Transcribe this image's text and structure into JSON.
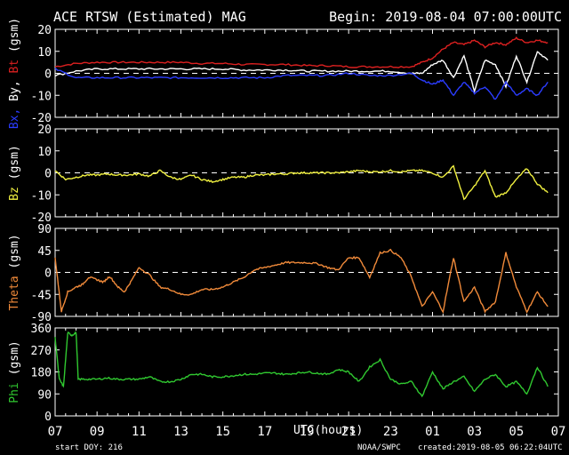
{
  "header": {
    "title": "ACE RTSW (Estimated) MAG",
    "begin": "Begin: 2019-08-04 07:00:00UTC"
  },
  "footer": {
    "start_doy": "start DOY:  216",
    "xlabel": "UTC(hours)",
    "source": "NOAA/SWPC",
    "created": "created:2019-08-05 06:22:04UTC"
  },
  "colors": {
    "bx": "#2b3cff",
    "by": "#ffffff",
    "bt": "#dd2020",
    "bz": "#f0f040",
    "theta": "#f08a3a",
    "phi": "#30c830",
    "grid": "#ffffff"
  },
  "chart_data": [
    {
      "type": "line",
      "ylabel_parts": [
        {
          "text": "Bx,",
          "color": "#2b3cff"
        },
        {
          "text": " By,",
          "color": "#ffffff"
        },
        {
          "text": " Bt",
          "color": "#dd2020"
        },
        {
          "text": " (gsm)",
          "color": "#ffffff"
        }
      ],
      "ylim": [
        -20,
        20
      ],
      "yticks": [
        "20",
        "10",
        "0",
        "-10",
        "-20"
      ],
      "ytick_values": [
        20,
        10,
        0,
        -10,
        -20
      ],
      "zero_line": 0,
      "x": [
        0,
        1,
        2,
        3,
        4,
        5,
        6,
        7,
        8,
        9,
        10,
        11,
        12,
        13,
        14,
        15,
        16,
        17,
        17.5,
        18,
        18.5,
        19,
        19.5,
        20,
        20.5,
        21,
        21.5,
        22,
        22.5,
        23,
        23.5
      ],
      "series": [
        {
          "name": "Bt",
          "color": "#dd2020",
          "values": [
            3,
            4.5,
            5,
            5,
            5,
            5,
            5,
            4.5,
            4.5,
            4,
            4,
            4,
            3.5,
            3.5,
            3,
            3,
            3,
            3,
            5,
            7,
            11,
            14,
            13,
            15,
            12,
            14,
            13,
            16,
            14,
            15,
            14
          ]
        },
        {
          "name": "By",
          "color": "#ffffff",
          "values": [
            -1,
            1,
            2,
            2,
            2,
            2,
            2,
            2,
            2,
            1.5,
            1.5,
            1.5,
            1,
            1,
            1,
            1,
            1,
            0,
            0,
            4,
            6,
            -2,
            8,
            -8,
            6,
            4,
            -6,
            8,
            -4,
            10,
            6
          ]
        },
        {
          "name": "Bx",
          "color": "#2b3cff",
          "values": [
            2,
            -2,
            -2,
            -2,
            -2,
            -2,
            -2,
            -2,
            -2,
            -2,
            -2,
            -1,
            -1,
            -1,
            0,
            -1,
            -1,
            0,
            -3,
            -5,
            -3,
            -10,
            -4,
            -9,
            -6,
            -12,
            -4,
            -10,
            -7,
            -10,
            -4
          ]
        }
      ]
    },
    {
      "type": "line",
      "ylabel_parts": [
        {
          "text": "Bz",
          "color": "#f0f040"
        },
        {
          "text": " (gsm)",
          "color": "#ffffff"
        }
      ],
      "ylim": [
        -20,
        20
      ],
      "yticks": [
        "20",
        "10",
        "0",
        "-10",
        "-20"
      ],
      "ytick_values": [
        20,
        10,
        0,
        -10,
        -20
      ],
      "zero_line": 0,
      "x": [
        0,
        0.5,
        1,
        1.5,
        2,
        2.5,
        3,
        3.5,
        4,
        4.5,
        5,
        5.5,
        6,
        6.5,
        7,
        7.5,
        8,
        8.5,
        9,
        9.5,
        10,
        10.5,
        11,
        11.5,
        12,
        12.5,
        13,
        13.5,
        14,
        14.5,
        15,
        15.5,
        16,
        16.5,
        17,
        17.5,
        18,
        18.5,
        19,
        19.5,
        20,
        20.5,
        21,
        21.5,
        22,
        22.5,
        23,
        23.5
      ],
      "series": [
        {
          "name": "Bz",
          "color": "#f0f040",
          "values": [
            1,
            -3,
            -2,
            -1,
            -1,
            -0.5,
            -1,
            -1,
            -0.5,
            -1.5,
            1,
            -2,
            -3,
            -1,
            -3,
            -4,
            -3,
            -2,
            -2,
            -1,
            -1,
            -0.5,
            -0.5,
            0,
            0,
            0,
            0,
            0,
            0.5,
            1,
            0.5,
            0.5,
            1,
            0.5,
            1,
            1,
            0,
            -2,
            3,
            -12,
            -6,
            1,
            -11,
            -9,
            -3,
            2,
            -5,
            -9
          ]
        }
      ]
    },
    {
      "type": "line",
      "ylabel_parts": [
        {
          "text": "Theta",
          "color": "#f08a3a"
        },
        {
          "text": " (gsm)",
          "color": "#ffffff"
        }
      ],
      "ylim": [
        -90,
        90
      ],
      "yticks": [
        "90",
        "45",
        "0",
        "-45",
        "-90"
      ],
      "ytick_values": [
        90,
        45,
        0,
        -45,
        -90
      ],
      "zero_line": 0,
      "x": [
        0,
        0.3,
        0.6,
        1,
        1.3,
        1.6,
        2,
        2.3,
        2.6,
        3,
        3.3,
        3.6,
        4,
        4.5,
        5,
        5.5,
        6,
        6.5,
        7,
        7.5,
        8,
        8.5,
        9,
        9.5,
        10,
        10.5,
        11,
        11.5,
        12,
        12.5,
        13,
        13.5,
        14,
        14.5,
        15,
        15.5,
        16,
        16.5,
        17,
        17.5,
        18,
        18.5,
        19,
        19.5,
        20,
        20.5,
        21,
        21.5,
        22,
        22.5,
        23,
        23.5
      ],
      "series": [
        {
          "name": "Theta",
          "color": "#f08a3a",
          "values": [
            30,
            -80,
            -40,
            -30,
            -25,
            -10,
            -15,
            -20,
            -8,
            -30,
            -40,
            -20,
            10,
            -5,
            -30,
            -35,
            -45,
            -45,
            -35,
            -35,
            -30,
            -20,
            -10,
            5,
            10,
            15,
            20,
            20,
            20,
            18,
            10,
            5,
            30,
            30,
            -10,
            40,
            45,
            30,
            -10,
            -70,
            -40,
            -80,
            30,
            -60,
            -30,
            -80,
            -60,
            40,
            -30,
            -80,
            -40,
            -70
          ]
        }
      ]
    },
    {
      "type": "line",
      "ylabel_parts": [
        {
          "text": "Phi",
          "color": "#30c830"
        },
        {
          "text": " (gsm)",
          "color": "#ffffff"
        }
      ],
      "ylim": [
        0,
        360
      ],
      "yticks": [
        "360",
        "270",
        "180",
        "90",
        "0"
      ],
      "ytick_values": [
        360,
        270,
        180,
        90,
        0
      ],
      "zero_line": null,
      "x": [
        0,
        0.2,
        0.4,
        0.6,
        0.8,
        1,
        1.1,
        1.5,
        2,
        2.5,
        3,
        3.5,
        4,
        4.5,
        5,
        5.5,
        6,
        6.5,
        7,
        7.5,
        8,
        8.5,
        9,
        9.5,
        10,
        10.5,
        11,
        11.5,
        12,
        12.5,
        13,
        13.5,
        14,
        14.5,
        15,
        15.5,
        16,
        16.5,
        17,
        17.5,
        18,
        18.5,
        19,
        19.5,
        20,
        20.5,
        21,
        21.5,
        22,
        22.5,
        23,
        23.5
      ],
      "series": [
        {
          "name": "Phi",
          "color": "#30c830",
          "values": [
            320,
            150,
            120,
            340,
            330,
            340,
            150,
            150,
            150,
            155,
            150,
            150,
            150,
            160,
            140,
            140,
            150,
            170,
            170,
            160,
            160,
            165,
            170,
            170,
            175,
            175,
            170,
            175,
            180,
            175,
            170,
            190,
            180,
            140,
            200,
            230,
            150,
            130,
            140,
            80,
            180,
            110,
            140,
            160,
            100,
            150,
            170,
            120,
            140,
            90,
            200,
            120
          ]
        }
      ]
    }
  ],
  "x_axis": {
    "range_hours": [
      0,
      24
    ],
    "tick_labels": [
      "07",
      "09",
      "11",
      "13",
      "15",
      "17",
      "19",
      "21",
      "23",
      "01",
      "03",
      "05",
      "07"
    ],
    "tick_hours": [
      0,
      2,
      4,
      6,
      8,
      10,
      12,
      14,
      16,
      18,
      20,
      22,
      24
    ]
  }
}
